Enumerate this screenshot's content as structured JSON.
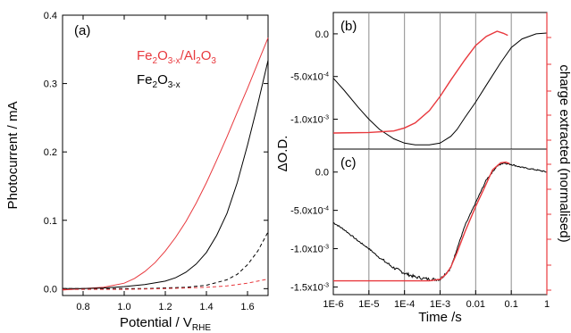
{
  "chart_data": [
    {
      "type": "line",
      "panel_label": "(a)",
      "xlabel": "Potential / V",
      "xlabel_sub": "RHE",
      "ylabel": "Photocurrent / mA",
      "xlim": [
        0.7,
        1.7
      ],
      "ylim": [
        -0.01,
        0.4
      ],
      "xticks": [
        0.8,
        1.0,
        1.2,
        1.4,
        1.6
      ],
      "xtick_labels": [
        "0.8",
        "1.0",
        "1.2",
        "1.4",
        "1.6"
      ],
      "yticks": [
        0.0,
        0.1,
        0.2,
        0.3,
        0.4
      ],
      "ytick_labels": [
        "0.0",
        "0.1",
        "0.2",
        "0.3",
        "0.4"
      ],
      "legend": [
        {
          "parts": [
            [
              "Fe",
              "base"
            ],
            [
              "2",
              "sub"
            ],
            [
              "O",
              "base"
            ],
            [
              "3-x",
              "sub"
            ],
            [
              "/Al",
              "base"
            ],
            [
              "2",
              "sub"
            ],
            [
              "O",
              "base"
            ],
            [
              "3",
              "sub"
            ]
          ],
          "color": "#e8383d"
        },
        {
          "parts": [
            [
              "Fe",
              "base"
            ],
            [
              "2",
              "sub"
            ],
            [
              "O",
              "base"
            ],
            [
              "3-x",
              "sub"
            ]
          ],
          "color": "#000000"
        }
      ],
      "series": [
        {
          "color": "#e8383d",
          "dash": "solid",
          "x": [
            0.7,
            0.8,
            0.9,
            1.0,
            1.05,
            1.1,
            1.15,
            1.2,
            1.25,
            1.3,
            1.35,
            1.4,
            1.45,
            1.5,
            1.55,
            1.6,
            1.65,
            1.7
          ],
          "y": [
            -0.002,
            0.0,
            0.002,
            0.008,
            0.015,
            0.025,
            0.038,
            0.055,
            0.075,
            0.098,
            0.125,
            0.155,
            0.188,
            0.222,
            0.258,
            0.293,
            0.33,
            0.367
          ]
        },
        {
          "color": "#000000",
          "dash": "solid",
          "x": [
            0.7,
            0.8,
            0.9,
            1.0,
            1.1,
            1.2,
            1.25,
            1.3,
            1.35,
            1.4,
            1.45,
            1.5,
            1.55,
            1.6,
            1.65,
            1.7
          ],
          "y": [
            0.0,
            0.0,
            0.001,
            0.003,
            0.006,
            0.011,
            0.016,
            0.024,
            0.036,
            0.053,
            0.078,
            0.11,
            0.155,
            0.21,
            0.27,
            0.334
          ]
        },
        {
          "color": "#000000",
          "dash": "dashed",
          "x": [
            0.7,
            0.9,
            1.1,
            1.3,
            1.4,
            1.5,
            1.55,
            1.6,
            1.65,
            1.7
          ],
          "y": [
            0.0,
            0.0,
            0.0,
            0.002,
            0.005,
            0.013,
            0.021,
            0.035,
            0.055,
            0.083
          ]
        },
        {
          "color": "#e8383d",
          "dash": "dashed",
          "x": [
            0.7,
            1.0,
            1.2,
            1.4,
            1.5,
            1.6,
            1.7
          ],
          "y": [
            -0.001,
            -0.001,
            0.0,
            0.002,
            0.004,
            0.008,
            0.014
          ]
        }
      ]
    },
    {
      "type": "line",
      "panel_label": "(b)",
      "x_scale": "log",
      "xlim": [
        1e-06,
        1
      ],
      "ylim": [
        -0.00135,
        0.00025
      ],
      "yticks": [
        0.0,
        -0.0005,
        -0.001
      ],
      "ytick_labels": [
        "0.0",
        "-5.0x10",
        "-1.0x10"
      ],
      "ytick_exps": [
        "",
        "-4",
        "-3"
      ],
      "vlines": [
        1e-05,
        0.0001,
        0.001,
        0.01,
        0.1
      ],
      "series": [
        {
          "color": "#000000",
          "axis": "left",
          "x": [
            1e-06,
            2e-06,
            5e-06,
            1e-05,
            2e-05,
            5e-05,
            0.0001,
            0.0002,
            0.0005,
            0.001,
            0.002,
            0.003,
            0.005,
            0.01,
            0.02,
            0.05,
            0.1,
            0.2,
            0.5,
            1
          ],
          "y": [
            -0.00052,
            -0.00066,
            -0.00086,
            -0.001,
            -0.00112,
            -0.00123,
            -0.00128,
            -0.0013,
            -0.0013,
            -0.00128,
            -0.0012,
            -0.00112,
            -0.00098,
            -0.0008,
            -0.0006,
            -0.00034,
            -0.00016,
            -6e-05,
            0.0,
            1e-05
          ]
        },
        {
          "color": "#e8383d",
          "axis": "right",
          "x": [
            1e-06,
            1e-05,
            5e-05,
            0.0001,
            0.0002,
            0.0005,
            0.001,
            0.002,
            0.005,
            0.01,
            0.02,
            0.04,
            0.06,
            0.08
          ],
          "y": [
            0.0,
            0.005,
            0.02,
            0.05,
            0.1,
            0.22,
            0.36,
            0.52,
            0.72,
            0.86,
            0.95,
            1.0,
            0.98,
            0.96
          ]
        }
      ]
    },
    {
      "type": "line",
      "panel_label": "(c)",
      "x_scale": "log",
      "xlim": [
        1e-06,
        1
      ],
      "ylim": [
        -0.0016,
        0.0003
      ],
      "xlabel": "Time /s",
      "xticks": [
        1e-06,
        1e-05,
        0.0001,
        0.001,
        0.01,
        0.1,
        1
      ],
      "xtick_labels": [
        "1E-6",
        "1E-5",
        "1E-4",
        "1E-3",
        "0.01",
        "0.1",
        "1"
      ],
      "yticks": [
        0.0,
        -0.0005,
        -0.001,
        -0.0015
      ],
      "ytick_labels": [
        "0.0",
        "-5.0x10",
        "-1.0x10",
        "-1.5x10"
      ],
      "ytick_exps": [
        "",
        "-4",
        "-3",
        "-3"
      ],
      "vlines": [
        1e-05,
        0.0001,
        0.001,
        0.01,
        0.1
      ],
      "series": [
        {
          "color": "#000000",
          "axis": "left",
          "noisy": true,
          "x": [
            1e-06,
            2e-06,
            5e-06,
            1e-05,
            2e-05,
            5e-05,
            0.0001,
            0.0002,
            0.0005,
            0.001,
            0.002,
            0.003,
            0.005,
            0.01,
            0.02,
            0.04,
            0.06,
            0.1,
            0.2,
            0.5,
            1
          ],
          "y": [
            -0.00066,
            -0.00075,
            -0.0009,
            -0.001,
            -0.00112,
            -0.00125,
            -0.00132,
            -0.00137,
            -0.0014,
            -0.0014,
            -0.00125,
            -0.001,
            -0.0007,
            -0.0004,
            -0.0001,
            8e-05,
            0.00012,
            0.0001,
            6e-05,
            3e-05,
            0.0
          ]
        },
        {
          "color": "#e8383d",
          "axis": "left",
          "x": [
            1e-06,
            1e-05,
            0.0001,
            0.0005,
            0.001,
            0.0015,
            0.002,
            0.003,
            0.005,
            0.01,
            0.02,
            0.03,
            0.05,
            0.07,
            0.09
          ],
          "y": [
            -0.00142,
            -0.00142,
            -0.00142,
            -0.00142,
            -0.0014,
            -0.00133,
            -0.00124,
            -0.00105,
            -0.00078,
            -0.00045,
            -0.00015,
            3e-05,
            0.00012,
            0.00013,
            0.00011
          ]
        }
      ]
    }
  ],
  "shared": {
    "ylabel_left": "ΔO.D.",
    "ylabel_right": "charge extracted (normalised)",
    "right_axis_color": "#e8383d"
  }
}
